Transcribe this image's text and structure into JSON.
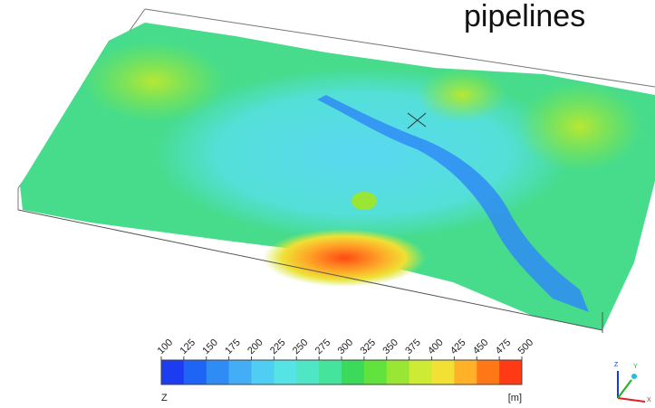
{
  "title": "pipelines",
  "colorbar": {
    "variable": "Z",
    "unit": "[m]",
    "ticks": [
      100,
      125,
      150,
      175,
      200,
      225,
      250,
      275,
      300,
      325,
      350,
      375,
      400,
      425,
      450,
      475,
      500
    ],
    "colors": [
      "#1c3cf2",
      "#1e64f5",
      "#2f8cf5",
      "#43aef5",
      "#4fcdf2",
      "#55e3e6",
      "#4fe6c6",
      "#46e39c",
      "#3cda5a",
      "#62e23c",
      "#9ae634",
      "#cdeb34",
      "#f2e034",
      "#ffb228",
      "#ff7716",
      "#ff3a14"
    ]
  },
  "triad": {
    "z": "Z",
    "y": "Y",
    "x": "X"
  }
}
